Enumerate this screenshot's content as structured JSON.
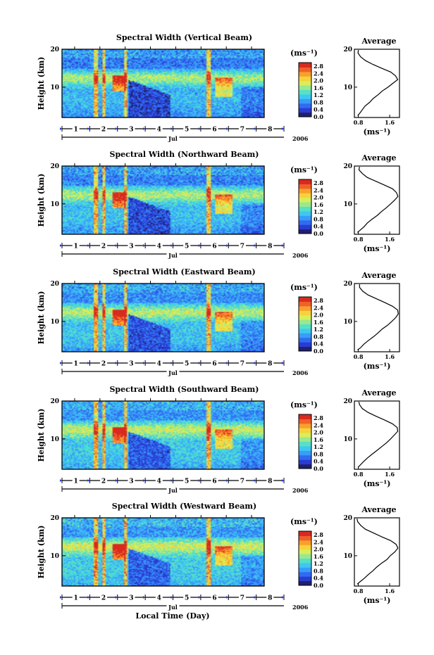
{
  "figure": {
    "xlabel": "Local Time (Day)",
    "colors": {
      "colormap": [
        "#20206e",
        "#2a3cd2",
        "#2f6cf0",
        "#3a9cf8",
        "#3ec8f0",
        "#56e0c6",
        "#9ae890",
        "#d8ee5a",
        "#f6d23c",
        "#f8a02c",
        "#f0602a",
        "#d82a1e"
      ]
    }
  },
  "chart_data": [
    {
      "type": "heatmap",
      "title": "Spectral Width (Vertical Beam)",
      "ylabel": "Height (km)",
      "ylim": [
        2,
        20
      ],
      "yticks": [
        "20",
        "10"
      ],
      "xlim": [
        0.5,
        8.5
      ],
      "xticks": [
        "1",
        "2",
        "3",
        "4",
        "5",
        "6",
        "7",
        "8"
      ],
      "month_label": "Jul",
      "year_label": "2006",
      "colorbar": {
        "unit": "(ms⁻¹)",
        "ticks": [
          "2.8",
          "2.4",
          "2.0",
          "1.6",
          "1.2",
          "0.8",
          "0.4",
          "0.0"
        ],
        "range": [
          0,
          3.0
        ]
      },
      "average": {
        "title": "Average",
        "xticks": [
          "0.8",
          "1.6"
        ],
        "xunit": "(ms⁻¹)",
        "xlim": [
          0.7,
          1.85
        ],
        "yticks": [
          "20",
          "10"
        ],
        "height": [
          2.5,
          3,
          4,
          5,
          6,
          7,
          8,
          9,
          10,
          11,
          12,
          13,
          14,
          15,
          16,
          17,
          18,
          19,
          19.8
        ],
        "width": [
          0.78,
          0.82,
          0.9,
          0.98,
          1.08,
          1.18,
          1.3,
          1.42,
          1.55,
          1.68,
          1.8,
          1.76,
          1.62,
          1.4,
          1.18,
          0.98,
          0.86,
          0.8,
          0.8
        ]
      }
    },
    {
      "type": "heatmap",
      "title": "Spectral Width (Northward Beam)",
      "ylabel": "Height (km)",
      "ylim": [
        2,
        20
      ],
      "yticks": [
        "20",
        "10"
      ],
      "xlim": [
        0.5,
        8.5
      ],
      "xticks": [
        "1",
        "2",
        "3",
        "4",
        "5",
        "6",
        "7",
        "8"
      ],
      "month_label": "Jul",
      "year_label": "2006",
      "colorbar": {
        "unit": "(ms⁻¹)",
        "ticks": [
          "2.8",
          "2.4",
          "2.0",
          "1.6",
          "1.2",
          "0.8",
          "0.4",
          "0.0"
        ],
        "range": [
          0,
          3.0
        ]
      },
      "average": {
        "title": "Average",
        "xticks": [
          "0.8",
          "1.6"
        ],
        "xunit": "(ms⁻¹)",
        "xlim": [
          0.7,
          1.85
        ],
        "yticks": [
          "20",
          "10"
        ],
        "height": [
          2.5,
          3,
          4,
          5,
          6,
          7,
          8,
          9,
          10,
          11,
          12,
          13,
          14,
          15,
          16,
          17,
          18,
          19,
          19.8
        ],
        "width": [
          0.78,
          0.84,
          0.94,
          1.04,
          1.16,
          1.28,
          1.4,
          1.52,
          1.62,
          1.72,
          1.8,
          1.78,
          1.66,
          1.46,
          1.24,
          1.04,
          0.9,
          0.82,
          0.84
        ]
      }
    },
    {
      "type": "heatmap",
      "title": "Spectral Width (Eastward Beam)",
      "ylabel": "Height (km)",
      "ylim": [
        2,
        20
      ],
      "yticks": [
        "20",
        "10"
      ],
      "xlim": [
        0.5,
        8.5
      ],
      "xticks": [
        "1",
        "2",
        "3",
        "4",
        "5",
        "6",
        "7",
        "8"
      ],
      "month_label": "Jul",
      "year_label": "2006",
      "colorbar": {
        "unit": "(ms⁻¹)",
        "ticks": [
          "2.8",
          "2.4",
          "2.0",
          "1.6",
          "1.2",
          "0.8",
          "0.4",
          "0.0"
        ],
        "range": [
          0,
          3.0
        ]
      },
      "average": {
        "title": "Average",
        "xticks": [
          "0.8",
          "1.6"
        ],
        "xunit": "(ms⁻¹)",
        "xlim": [
          0.7,
          1.85
        ],
        "yticks": [
          "20",
          "10"
        ],
        "height": [
          2.5,
          3,
          4,
          5,
          6,
          7,
          8,
          9,
          10,
          11,
          12,
          13,
          14,
          15,
          16,
          17,
          18,
          19,
          19.8
        ],
        "width": [
          0.78,
          0.84,
          0.94,
          1.06,
          1.18,
          1.3,
          1.42,
          1.54,
          1.64,
          1.74,
          1.82,
          1.8,
          1.68,
          1.48,
          1.26,
          1.06,
          0.92,
          0.84,
          0.82
        ]
      }
    },
    {
      "type": "heatmap",
      "title": "Spectral Width (Southward Beam)",
      "ylabel": "Height (km)",
      "ylim": [
        2,
        20
      ],
      "yticks": [
        "20",
        "10"
      ],
      "xlim": [
        0.5,
        8.5
      ],
      "xticks": [
        "1",
        "2",
        "3",
        "4",
        "5",
        "6",
        "7",
        "8"
      ],
      "month_label": "Jul",
      "year_label": "2006",
      "colorbar": {
        "unit": "(ms⁻¹)",
        "ticks": [
          "2.8",
          "2.4",
          "2.0",
          "1.6",
          "1.2",
          "0.8",
          "0.4",
          "0.0"
        ],
        "range": [
          0,
          3.0
        ]
      },
      "average": {
        "title": "Average",
        "xticks": [
          "0.8",
          "1.6"
        ],
        "xunit": "(ms⁻¹)",
        "xlim": [
          0.7,
          1.85
        ],
        "yticks": [
          "20",
          "10"
        ],
        "height": [
          2.5,
          3,
          4,
          5,
          6,
          7,
          8,
          9,
          10,
          11,
          12,
          13,
          14,
          15,
          16,
          17,
          18,
          19,
          19.8
        ],
        "width": [
          0.78,
          0.84,
          0.94,
          1.04,
          1.16,
          1.28,
          1.4,
          1.52,
          1.62,
          1.72,
          1.8,
          1.78,
          1.66,
          1.46,
          1.24,
          1.04,
          0.9,
          0.82,
          0.82
        ]
      }
    },
    {
      "type": "heatmap",
      "title": "Spectral Width (Westward Beam)",
      "ylabel": "Height (km)",
      "ylim": [
        2,
        20
      ],
      "yticks": [
        "20",
        "10"
      ],
      "xlim": [
        0.5,
        8.5
      ],
      "xticks": [
        "1",
        "2",
        "3",
        "4",
        "5",
        "6",
        "7",
        "8"
      ],
      "month_label": "Jul",
      "year_label": "2006",
      "colorbar": {
        "unit": "(ms⁻¹)",
        "ticks": [
          "2.8",
          "2.4",
          "2.0",
          "1.6",
          "1.2",
          "0.8",
          "0.4",
          "0.0"
        ],
        "range": [
          0,
          3.0
        ]
      },
      "average": {
        "title": "Average",
        "xticks": [
          "0.8",
          "1.6"
        ],
        "xunit": "(ms⁻¹)",
        "xlim": [
          0.7,
          1.85
        ],
        "yticks": [
          "20",
          "10"
        ],
        "height": [
          2.5,
          3,
          4,
          5,
          6,
          7,
          8,
          9,
          10,
          11,
          12,
          13,
          14,
          15,
          16,
          17,
          18,
          19,
          19.8
        ],
        "width": [
          0.78,
          0.84,
          0.94,
          1.04,
          1.16,
          1.28,
          1.4,
          1.52,
          1.62,
          1.72,
          1.8,
          1.76,
          1.62,
          1.4,
          1.18,
          0.98,
          0.86,
          0.78,
          0.76
        ]
      }
    }
  ]
}
